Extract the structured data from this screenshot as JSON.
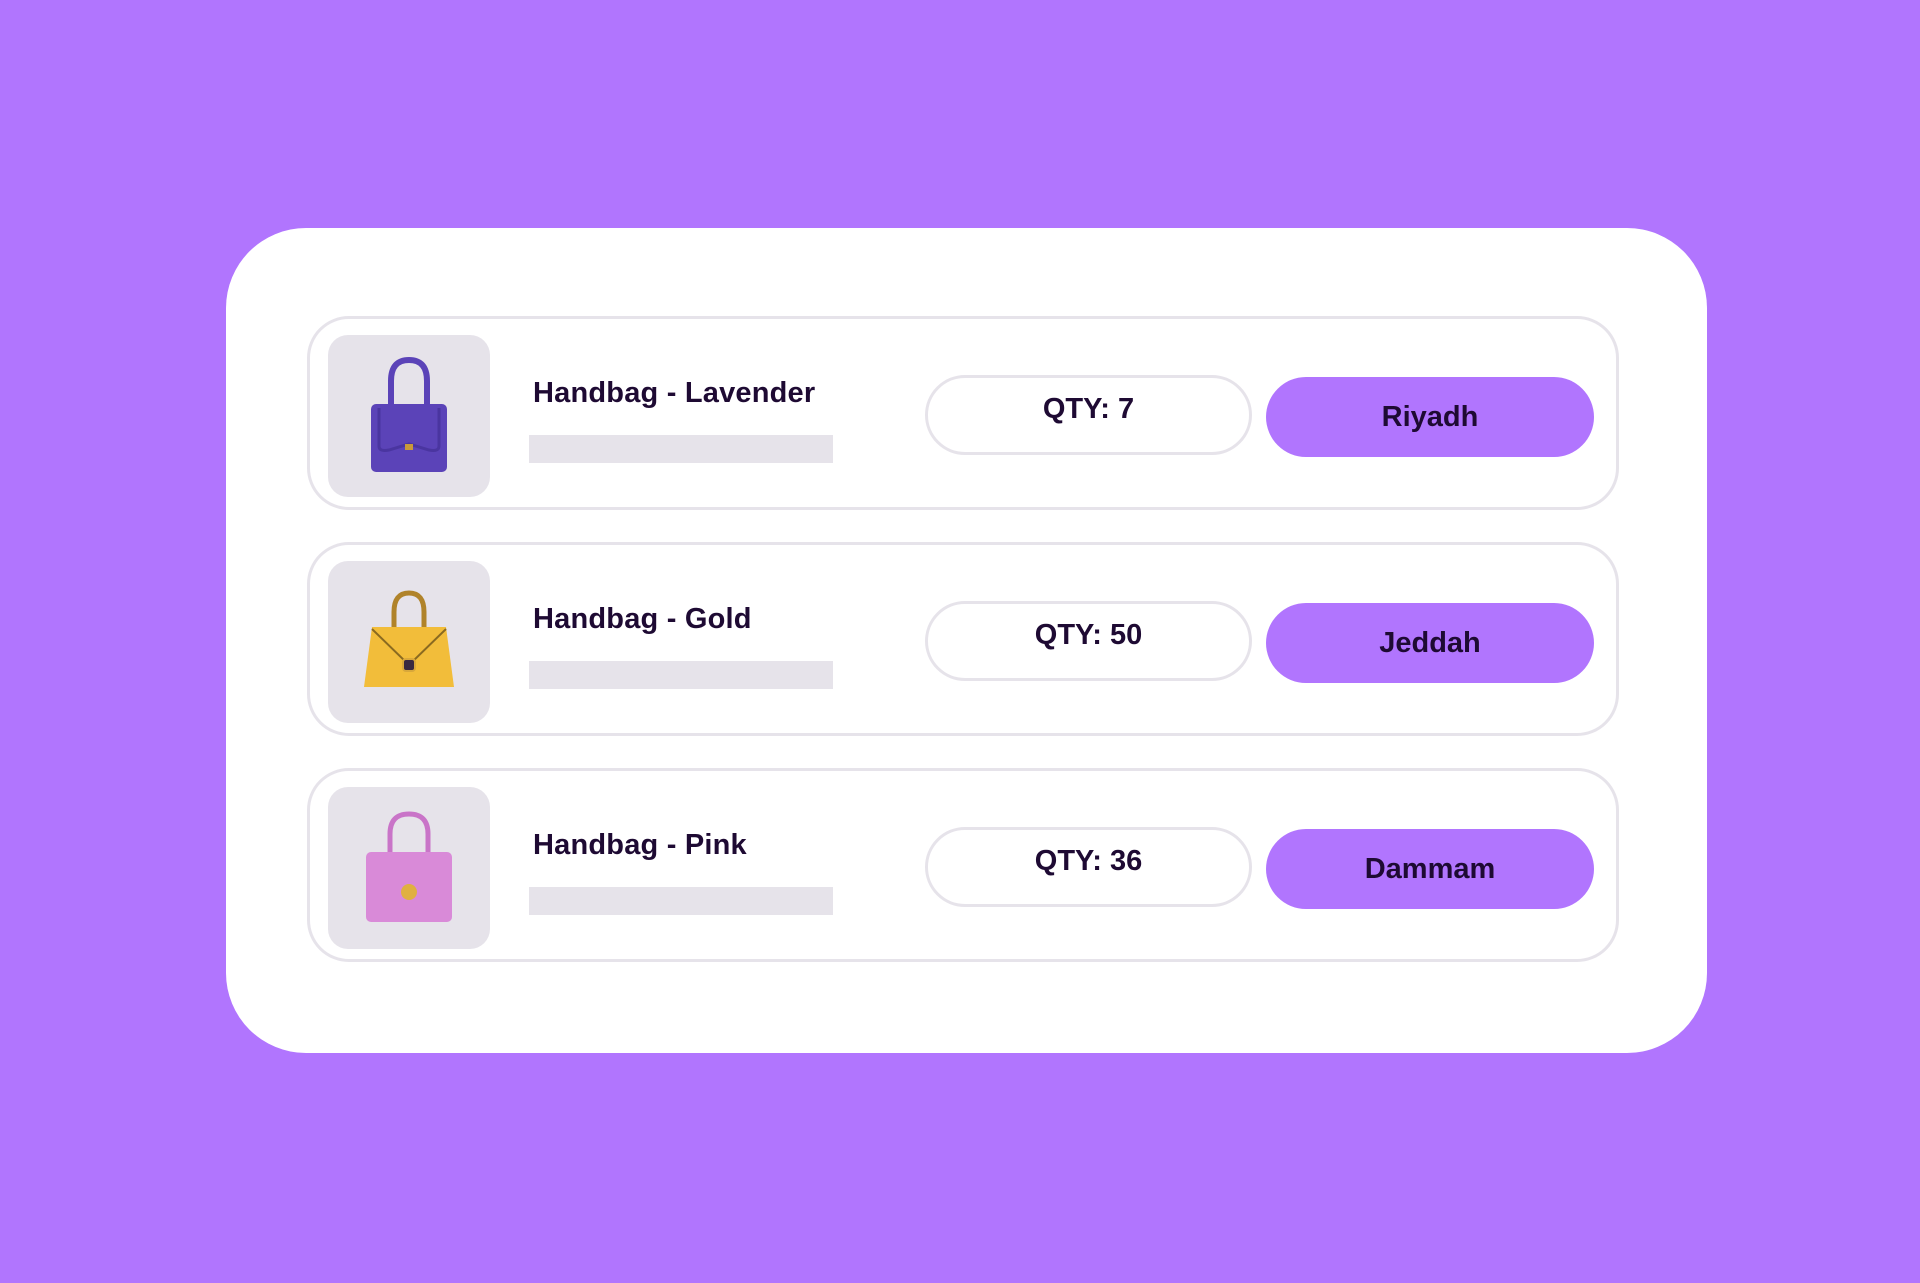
{
  "colors": {
    "background": "#b175fe",
    "accent": "#b175fe",
    "text": "#1e0a33",
    "placeholder_bar": "#e6e3ea"
  },
  "items": [
    {
      "title": "Handbag - Lavender",
      "qty": "QTY: 7",
      "city": "Riyadh",
      "image": "lavender-handbag-image",
      "bag_color": "#5b43b8"
    },
    {
      "title": "Handbag - Gold",
      "qty": "QTY: 50",
      "city": "Jeddah",
      "image": "gold-handbag-image",
      "bag_color": "#f2bd3a"
    },
    {
      "title": "Handbag - Pink",
      "qty": "QTY: 36",
      "city": "Dammam",
      "image": "pink-handbag-image",
      "bag_color": "#d98ad8"
    }
  ]
}
